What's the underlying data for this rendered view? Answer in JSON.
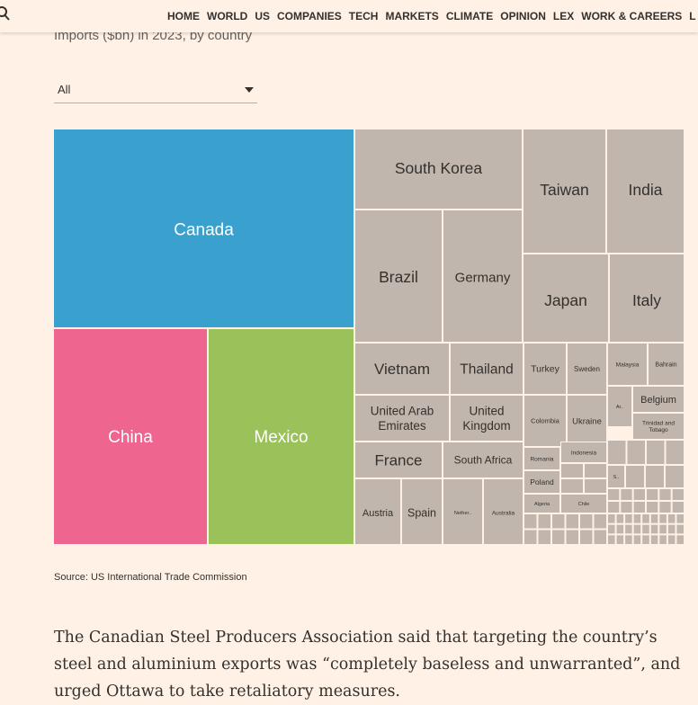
{
  "nav": {
    "items": [
      "HOME",
      "WORLD",
      "US",
      "COMPANIES",
      "TECH",
      "MARKETS",
      "CLIMATE",
      "OPINION",
      "LEX",
      "WORK & CAREERS",
      "L"
    ]
  },
  "header": {
    "subtitle": "Imports ($bn) in 2023, by country"
  },
  "filter": {
    "selected": "All"
  },
  "chart_data": {
    "type": "treemap",
    "legend": "none",
    "colors": {
      "Canada": "#3aa1cf",
      "China": "#ee6590",
      "Mexico": "#9bc15a",
      "other": "#c1b6ad"
    },
    "labels": [
      "Canada",
      "China",
      "Mexico",
      "South Korea",
      "Taiwan",
      "India",
      "Brazil",
      "Germany",
      "Japan",
      "Italy",
      "Vietnam",
      "Thailand",
      "Turkey",
      "Sweden",
      "Malaysia",
      "Bahrain",
      "United Arab Emirates",
      "United Kingdom",
      "Colombia",
      "Ukraine",
      "Ar..",
      "Belgium",
      "Trinidad and Tobago",
      "France",
      "South Africa",
      "Romania",
      "Indonesia",
      "S..",
      "Poland",
      "Austria",
      "Spain",
      "Nether..",
      "Australia",
      "Algeria",
      "Chile"
    ]
  },
  "source": "Source: US International Trade Commission",
  "article": {
    "paragraph": "The Canadian Steel Producers Association said that targeting the country’s steel and aluminium exports was “completely baseless and unwarranted”, and urged Ottawa to take retaliatory measures."
  }
}
